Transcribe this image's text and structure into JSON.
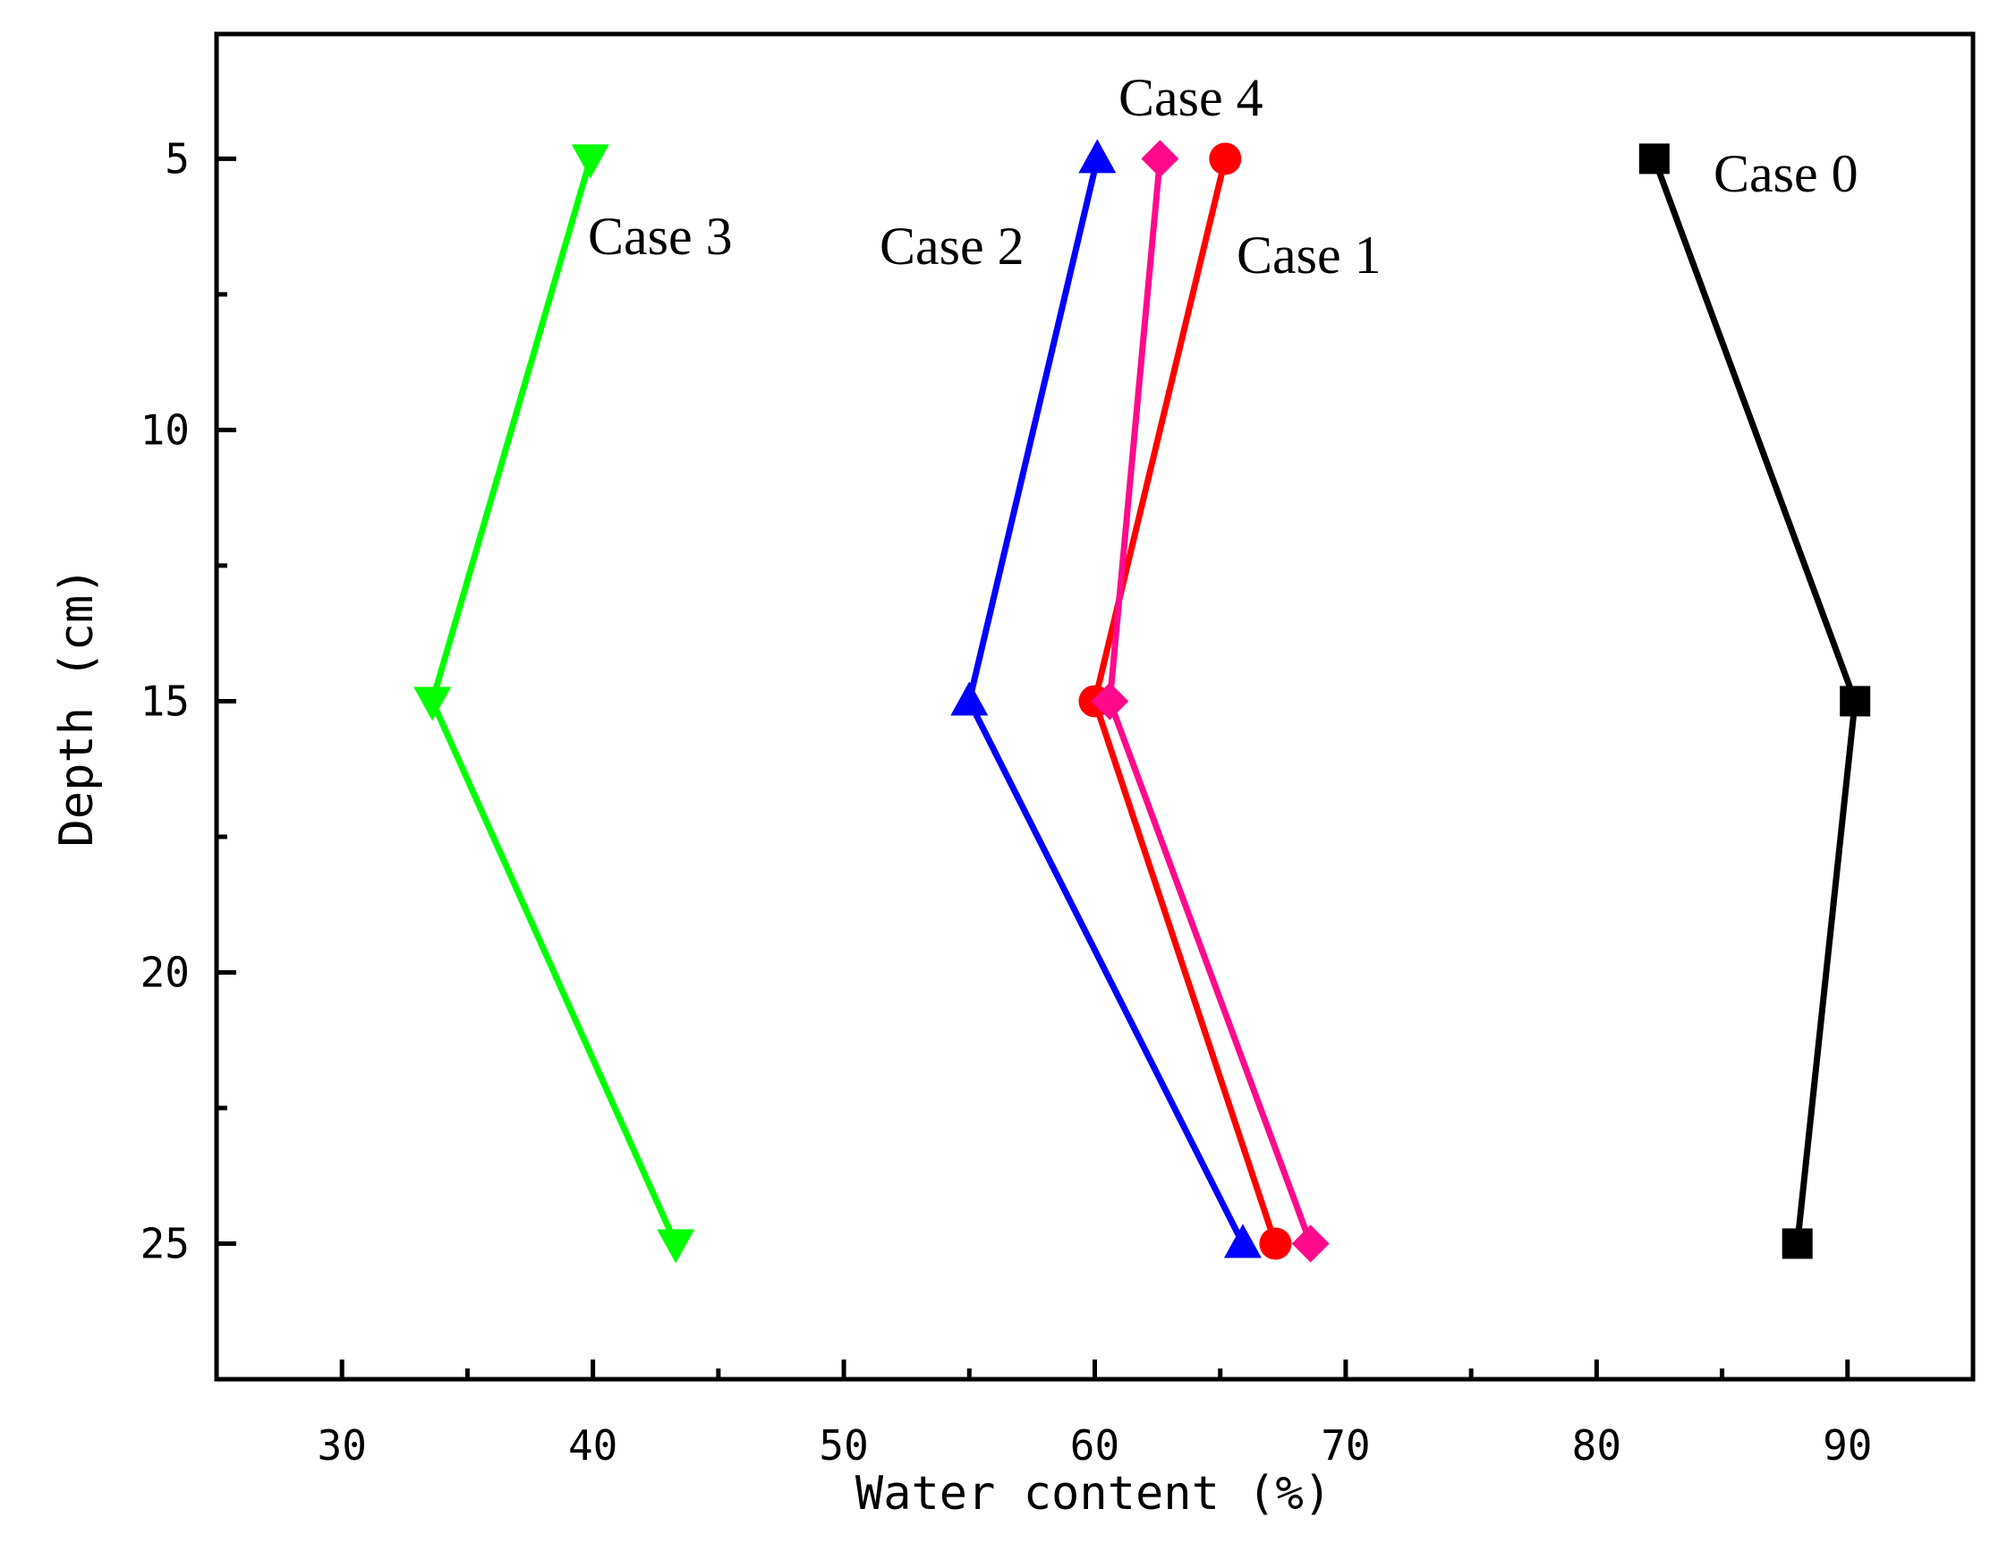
{
  "chart_data": {
    "type": "line",
    "xlabel": "Water content (%)",
    "ylabel": "Depth (cm)",
    "xlim": [
      25,
      95
    ],
    "ylim": [
      2.7,
      27.5
    ],
    "y_inverted": true,
    "x_ticks": [
      30,
      40,
      50,
      60,
      70,
      80,
      90
    ],
    "x_minor_ticks": [
      35,
      45,
      55,
      65,
      75,
      85
    ],
    "y_ticks": [
      5,
      10,
      15,
      20,
      25
    ],
    "y_minor_ticks": [
      7.5,
      12.5,
      17.5,
      22.5
    ],
    "grid": false,
    "legend": "none",
    "series": [
      {
        "name": "Case 0",
        "color": "#000000",
        "marker": "square",
        "x": [
          82.3,
          90.3,
          88.0
        ],
        "y": [
          5,
          15,
          25
        ]
      },
      {
        "name": "Case 1",
        "color": "#ff0000",
        "marker": "circle",
        "x": [
          65.2,
          60.0,
          67.2
        ],
        "y": [
          5,
          15,
          25
        ]
      },
      {
        "name": "Case 2",
        "color": "#0000ff",
        "marker": "triangle-up",
        "x": [
          60.1,
          55.0,
          65.9
        ],
        "y": [
          5,
          15,
          25
        ]
      },
      {
        "name": "Case 3",
        "color": "#00ff00",
        "marker": "triangle-down",
        "x": [
          39.9,
          33.6,
          43.3
        ],
        "y": [
          5,
          15,
          25
        ]
      },
      {
        "name": "Case 4",
        "color": "#ff0a8c",
        "marker": "diamond",
        "x": [
          62.6,
          60.6,
          68.6
        ],
        "y": [
          5,
          15,
          25
        ]
      }
    ]
  }
}
